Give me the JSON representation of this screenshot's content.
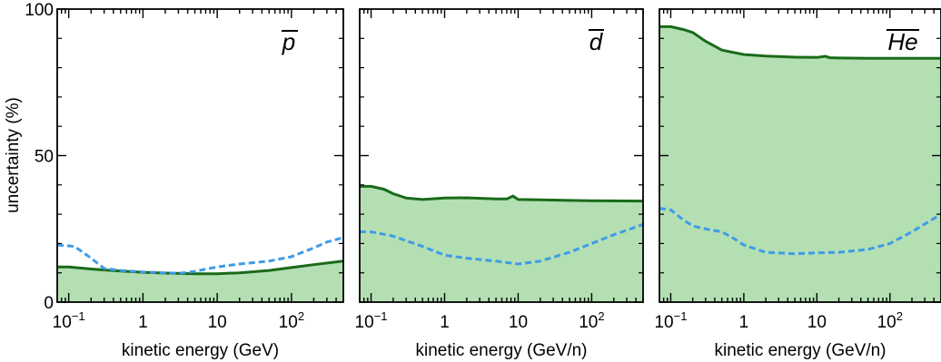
{
  "chart_data": [
    {
      "type": "area",
      "label": "p",
      "xlabel": "kinetic energy (GeV)",
      "ylabel": "uncertainty (%)",
      "xscale": "log",
      "xlim": [
        0.07,
        500
      ],
      "ylim": [
        0,
        100
      ],
      "xticks": [
        "10^-1",
        "1",
        "10",
        "10^2"
      ],
      "yticks": [
        "0",
        "50",
        "100"
      ],
      "grid": false,
      "series": [
        {
          "style": "solid-filled",
          "color": "#1a6b1a",
          "fill": "#b3dfb3",
          "x": [
            0.07,
            0.1,
            0.2,
            0.5,
            1,
            2,
            5,
            10,
            20,
            50,
            100,
            200,
            500
          ],
          "y": [
            12.0,
            12.0,
            11.3,
            10.6,
            10.2,
            9.9,
            9.7,
            9.7,
            10.0,
            10.8,
            11.8,
            12.8,
            14.0
          ]
        },
        {
          "style": "dashed",
          "color": "#3f9be8",
          "x": [
            0.07,
            0.12,
            0.2,
            0.3,
            0.5,
            1,
            2,
            3,
            5,
            10,
            20,
            50,
            100,
            200,
            300,
            500
          ],
          "y": [
            19.5,
            19.0,
            15.0,
            11.5,
            10.8,
            10.3,
            10.0,
            9.8,
            10.5,
            12.0,
            13.0,
            14.0,
            15.5,
            18.5,
            20.5,
            22.0
          ]
        }
      ]
    },
    {
      "type": "area",
      "label": "d",
      "xlabel": "kinetic energy (GeV/n)",
      "xscale": "log",
      "xlim": [
        0.07,
        500
      ],
      "ylim": [
        0,
        100
      ],
      "xticks": [
        "10^-1",
        "1",
        "10",
        "10^2"
      ],
      "grid": false,
      "series": [
        {
          "style": "solid-filled",
          "color": "#1a6b1a",
          "fill": "#b3dfb3",
          "x": [
            0.07,
            0.1,
            0.15,
            0.2,
            0.3,
            0.5,
            1,
            2,
            5,
            7,
            8.5,
            10,
            20,
            50,
            100,
            500
          ],
          "y": [
            39.5,
            39.5,
            38.5,
            37.0,
            35.5,
            35.0,
            35.5,
            35.6,
            35.2,
            35.2,
            36.2,
            35.0,
            34.9,
            34.7,
            34.6,
            34.5
          ]
        },
        {
          "style": "dashed",
          "color": "#3f9be8",
          "x": [
            0.07,
            0.1,
            0.2,
            0.5,
            1,
            2,
            5,
            10,
            20,
            50,
            100,
            200,
            500
          ],
          "y": [
            24.0,
            24.0,
            22.5,
            19.0,
            16.0,
            15.0,
            14.0,
            13.0,
            14.0,
            17.0,
            20.0,
            23.0,
            26.5
          ]
        }
      ]
    },
    {
      "type": "area",
      "label": "He",
      "xlabel": "kinetic energy (GeV/n)",
      "xscale": "log",
      "xlim": [
        0.07,
        500
      ],
      "ylim": [
        0,
        100
      ],
      "xticks": [
        "10^-1",
        "1",
        "10",
        "10^2"
      ],
      "grid": false,
      "series": [
        {
          "style": "solid-filled",
          "color": "#1a6b1a",
          "fill": "#b3dfb3",
          "x": [
            0.07,
            0.1,
            0.15,
            0.2,
            0.3,
            0.5,
            1,
            2,
            5,
            10,
            13,
            15,
            20,
            50,
            100,
            500
          ],
          "y": [
            94.0,
            94.0,
            93.0,
            92.0,
            89.0,
            86.0,
            84.5,
            84.0,
            83.6,
            83.5,
            83.9,
            83.4,
            83.3,
            83.2,
            83.2,
            83.2
          ]
        },
        {
          "style": "dashed",
          "color": "#3f9be8",
          "x": [
            0.07,
            0.1,
            0.15,
            0.2,
            0.3,
            0.5,
            0.7,
            1,
            2,
            5,
            10,
            20,
            50,
            100,
            200,
            500
          ],
          "y": [
            32.0,
            31.5,
            28.0,
            26.0,
            25.0,
            24.0,
            22.0,
            19.5,
            17.0,
            16.5,
            16.8,
            17.0,
            18.0,
            20.0,
            24.0,
            30.0
          ]
        }
      ]
    }
  ]
}
